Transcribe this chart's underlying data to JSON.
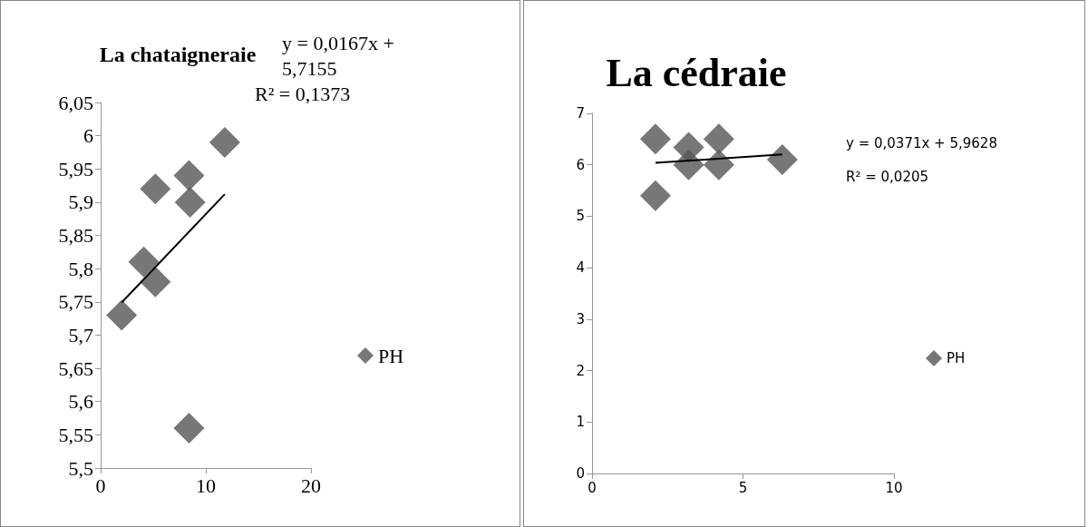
{
  "chart_data": [
    {
      "type": "scatter",
      "title": "La chataigneraie",
      "xlim": [
        0,
        20
      ],
      "xticks": [
        0,
        10,
        20
      ],
      "ylim": [
        5.5,
        6.05
      ],
      "yticks": [
        {
          "value": 5.5,
          "label": "5,5"
        },
        {
          "value": 5.55,
          "label": "5,55"
        },
        {
          "value": 5.6,
          "label": "5,6"
        },
        {
          "value": 5.65,
          "label": "5,65"
        },
        {
          "value": 5.7,
          "label": "5,7"
        },
        {
          "value": 5.75,
          "label": "5,75"
        },
        {
          "value": 5.8,
          "label": "5,8"
        },
        {
          "value": 5.85,
          "label": "5,85"
        },
        {
          "value": 5.9,
          "label": "5,9"
        },
        {
          "value": 5.95,
          "label": "5,95"
        },
        {
          "value": 6,
          "label": "6"
        },
        {
          "value": 6.05,
          "label": "6,05"
        }
      ],
      "grid": false,
      "legend": "right",
      "series": [
        {
          "name": "PH",
          "marker": "diamond",
          "color": "#555555",
          "x": [
            2.0,
            4.1,
            5.2,
            5.2,
            8.4,
            8.5,
            8.4,
            11.8
          ],
          "values": [
            5.73,
            5.81,
            5.92,
            5.78,
            5.94,
            5.9,
            5.56,
            5.99
          ]
        },
        {
          "type": "line",
          "marker": "none",
          "color": "#000000",
          "x": [
            2.0,
            11.8
          ],
          "values": [
            5.749,
            5.912
          ]
        }
      ],
      "annotations": [
        "y = 0,0167x + 5,7155",
        "R² = 0,1373"
      ]
    },
    {
      "type": "scatter",
      "title": "La cédraie",
      "xlim": [
        0,
        10
      ],
      "xticks": [
        0,
        5,
        10
      ],
      "ylim": [
        0,
        7
      ],
      "yticks": [
        0,
        1,
        2,
        3,
        4,
        5,
        6,
        7
      ],
      "grid": false,
      "legend": "right",
      "series": [
        {
          "name": "PH",
          "marker": "diamond",
          "color": "#555555",
          "x": [
            2.1,
            2.1,
            3.2,
            3.2,
            4.2,
            4.2,
            6.3
          ],
          "values": [
            6.5,
            5.4,
            6.34,
            6.0,
            6.5,
            6.0,
            6.1
          ]
        },
        {
          "type": "line",
          "marker": "none",
          "color": "#000000",
          "x": [
            2.1,
            6.3
          ],
          "values": [
            6.04,
            6.2
          ]
        }
      ],
      "annotations": [
        "y = 0,0371x + 5,9628",
        "R² = 0,0205"
      ]
    }
  ]
}
